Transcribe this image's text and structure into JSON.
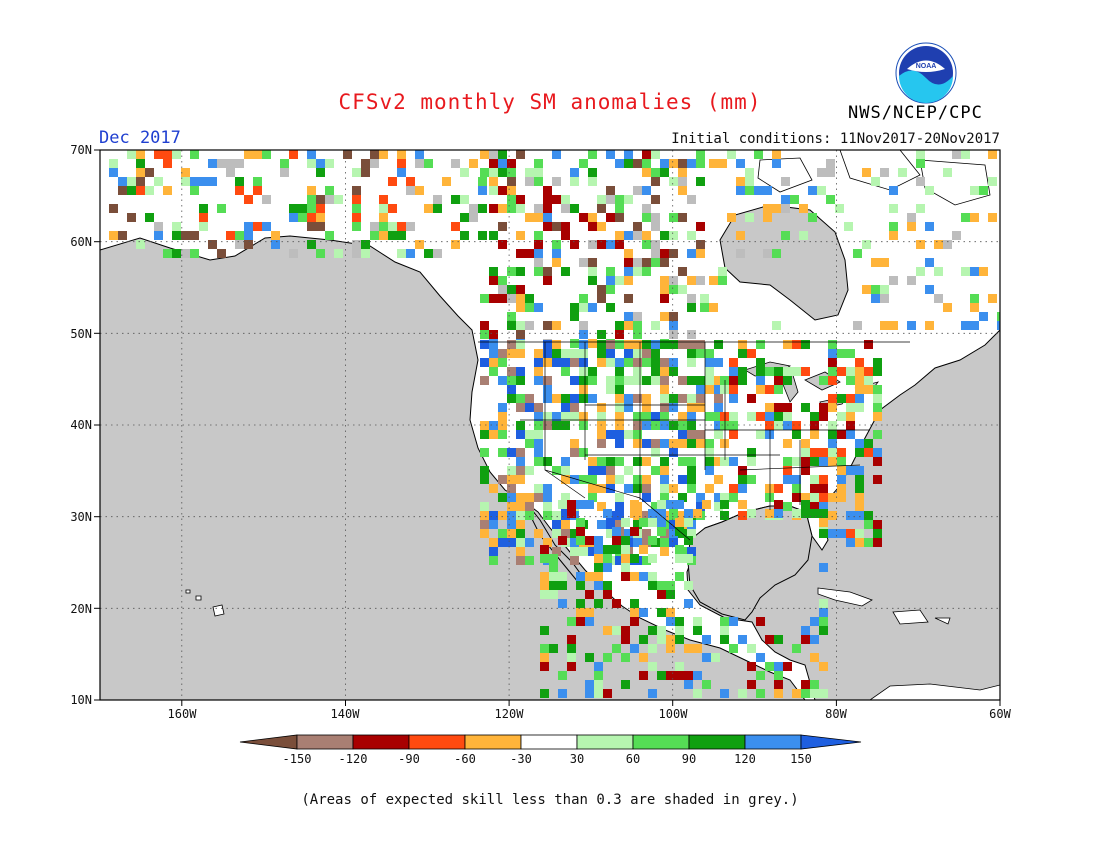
{
  "title": "CFSv2 monthly SM anomalies (mm)",
  "valid_month": "Dec 2017",
  "agency": "NWS/NCEP/CPC",
  "logo_text": "NOAA",
  "initial_conditions": "Initial conditions: 11Nov2017-20Nov2017",
  "lat_labels": [
    "70N",
    "60N",
    "50N",
    "40N",
    "30N",
    "20N",
    "10N"
  ],
  "lon_labels": [
    "160W",
    "140W",
    "120W",
    "100W",
    "80W",
    "60W"
  ],
  "colorbar": {
    "labels": [
      "-150",
      "-120",
      "-90",
      "-60",
      "-30",
      "30",
      "60",
      "90",
      "120",
      "150"
    ],
    "colors": [
      "#7a4e3a",
      "#a97f73",
      "#a80000",
      "#ff4a10",
      "#ffb43a",
      "#ffffff",
      "#b6f5b0",
      "#55dd55",
      "#10a010",
      "#3b8fee",
      "#1e5fe0"
    ]
  },
  "footnote": "(Areas of expected skill less than 0.3 are shaded in grey.)",
  "colors": {
    "ocean": "#c8c8c8",
    "title": "#e8191e",
    "month": "#1f3fd0"
  }
}
